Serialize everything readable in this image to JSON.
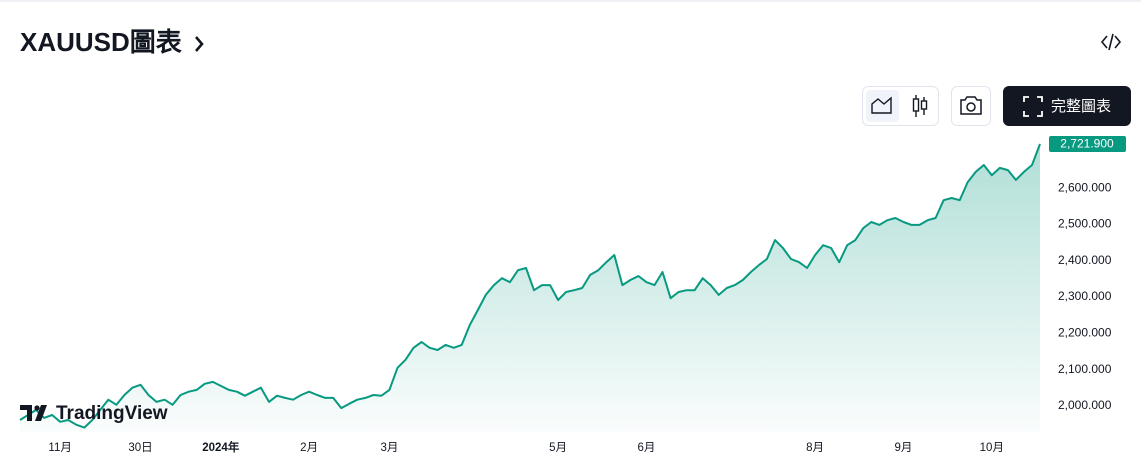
{
  "header": {
    "title": "XAUUSD圖表"
  },
  "toolbar": {
    "full_chart_button": "完整圖表"
  },
  "branding": {
    "logo_text": "TradingView"
  },
  "chart_data": {
    "type": "area",
    "color": "#089981",
    "categories": [
      null,
      null,
      null,
      null,
      null,
      "11月",
      null,
      null,
      null,
      null,
      null,
      null,
      null,
      null,
      null,
      "30日",
      null,
      null,
      null,
      null,
      null,
      null,
      null,
      null,
      null,
      "2024年",
      null,
      null,
      null,
      null,
      null,
      null,
      null,
      null,
      null,
      null,
      "2月",
      null,
      null,
      null,
      null,
      null,
      null,
      null,
      null,
      null,
      "3月",
      null,
      null,
      null,
      null,
      null,
      null,
      null,
      null,
      null,
      null,
      null,
      null,
      null,
      null,
      null,
      null,
      null,
      null,
      null,
      null,
      "5月",
      null,
      null,
      null,
      null,
      null,
      null,
      null,
      null,
      null,
      null,
      "6月",
      null,
      null,
      null,
      null,
      null,
      null,
      null,
      null,
      null,
      null,
      null,
      null,
      null,
      null,
      null,
      null,
      null,
      null,
      null,
      null,
      "8月",
      null,
      null,
      null,
      null,
      null,
      null,
      null,
      null,
      null,
      null,
      "9月",
      null,
      null,
      null,
      null,
      null,
      null,
      null,
      null,
      null,
      null,
      "10月",
      null,
      null,
      null,
      null,
      null,
      null
    ],
    "values": [
      1961,
      1975,
      1989,
      1967,
      1975,
      1956,
      1961,
      1948,
      1940,
      1961,
      1989,
      2017,
      2003,
      2030,
      2050,
      2058,
      2030,
      2011,
      2017,
      2003,
      2030,
      2039,
      2044,
      2061,
      2066,
      2055,
      2044,
      2039,
      2028,
      2039,
      2050,
      2011,
      2028,
      2022,
      2017,
      2030,
      2039,
      2030,
      2022,
      2022,
      1994,
      2006,
      2017,
      2022,
      2030,
      2028,
      2044,
      2105,
      2127,
      2160,
      2176,
      2160,
      2154,
      2168,
      2160,
      2168,
      2223,
      2264,
      2306,
      2333,
      2352,
      2341,
      2374,
      2380,
      2319,
      2333,
      2333,
      2292,
      2314,
      2319,
      2325,
      2361,
      2374,
      2396,
      2416,
      2333,
      2347,
      2358,
      2341,
      2333,
      2369,
      2297,
      2314,
      2319,
      2319,
      2352,
      2333,
      2306,
      2325,
      2333,
      2347,
      2369,
      2388,
      2405,
      2457,
      2435,
      2405,
      2396,
      2380,
      2416,
      2443,
      2435,
      2396,
      2443,
      2457,
      2490,
      2507,
      2499,
      2512,
      2518,
      2507,
      2499,
      2499,
      2512,
      2518,
      2567,
      2573,
      2567,
      2617,
      2645,
      2664,
      2636,
      2656,
      2650,
      2623,
      2645,
      2664,
      2721.9
    ],
    "last_label": "2,721.900",
    "ylim": [
      1928,
      2733
    ],
    "yticks": [
      {
        "value": 2000,
        "label": "2,000.000"
      },
      {
        "value": 2100,
        "label": "2,100.000"
      },
      {
        "value": 2200,
        "label": "2,200.000"
      },
      {
        "value": 2300,
        "label": "2,300.000"
      },
      {
        "value": 2400,
        "label": "2,400.000"
      },
      {
        "value": 2500,
        "label": "2,500.000"
      },
      {
        "value": 2600,
        "label": "2,600.000"
      }
    ]
  }
}
